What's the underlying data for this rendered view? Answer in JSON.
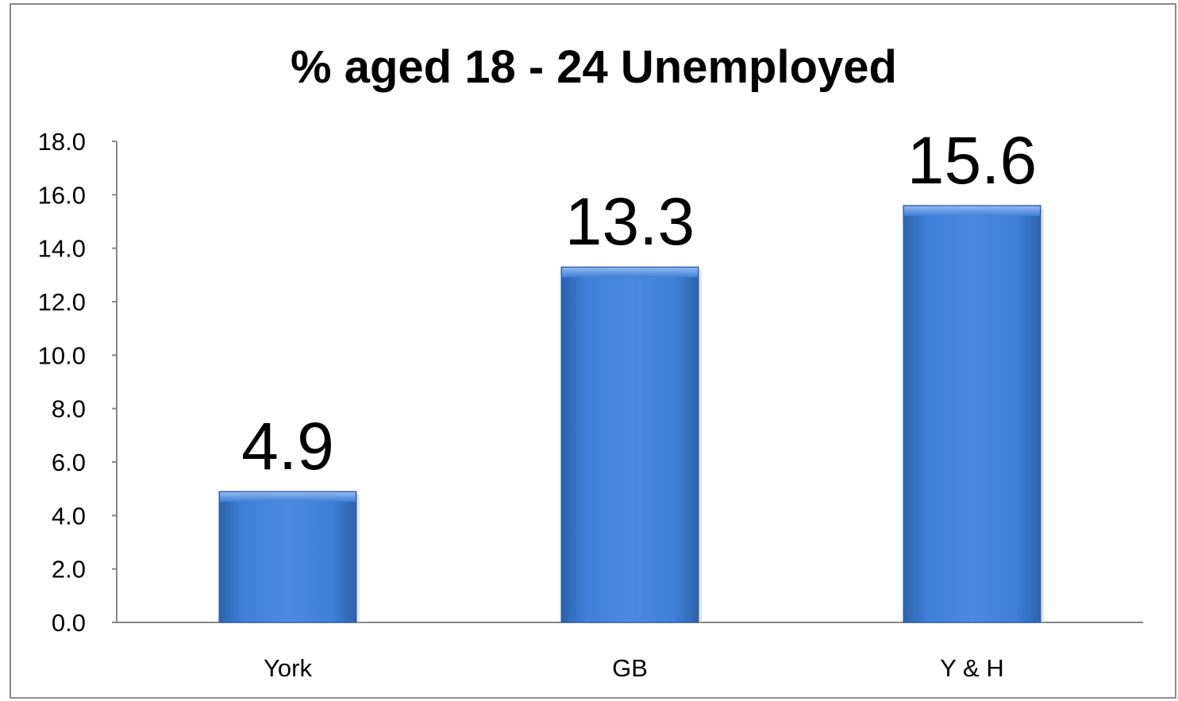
{
  "chart_data": {
    "type": "bar",
    "title": "% aged 18 - 24 Unemployed",
    "xlabel": "",
    "ylabel": "",
    "categories": [
      "York",
      "GB",
      "Y & H"
    ],
    "values": [
      4.9,
      13.3,
      15.6
    ],
    "data_labels": [
      "4.9",
      "13.3",
      "15.6"
    ],
    "y_ticks": [
      "0.0",
      "2.0",
      "4.0",
      "6.0",
      "8.0",
      "10.0",
      "12.0",
      "14.0",
      "16.0",
      "18.0"
    ],
    "ylim": [
      0,
      18
    ],
    "grid": false,
    "legend": "none",
    "bar_color": "#3d7fd6",
    "bar_color_dark": "#2a5fa8"
  }
}
